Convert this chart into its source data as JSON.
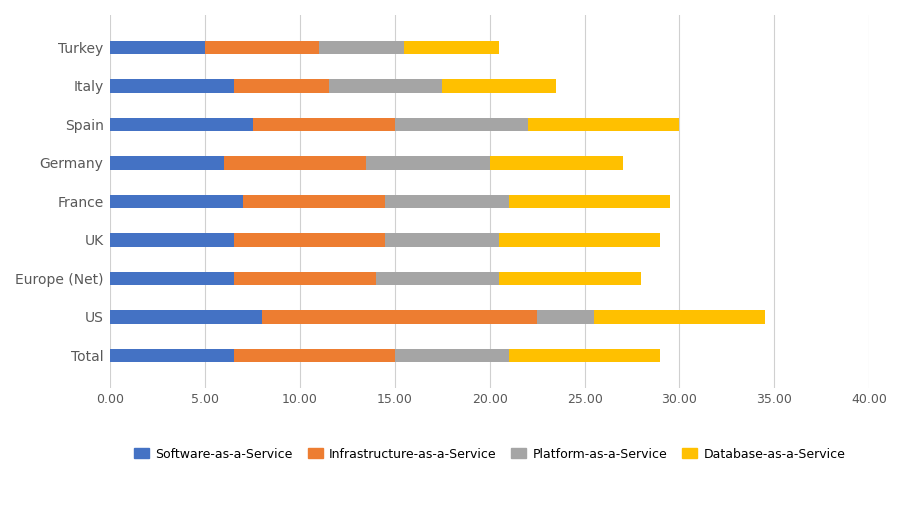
{
  "categories": [
    "Total",
    "US",
    "Europe (Net)",
    "UK",
    "France",
    "Germany",
    "Spain",
    "Italy",
    "Turkey"
  ],
  "series": {
    "Software-as-a-Service": [
      6.5,
      8.0,
      6.5,
      6.5,
      7.0,
      6.0,
      7.5,
      6.5,
      5.0
    ],
    "Infrastructure-as-a-Service": [
      8.5,
      14.5,
      7.5,
      8.0,
      7.5,
      7.5,
      7.5,
      5.0,
      6.0
    ],
    "Platform-as-a-Service": [
      6.0,
      3.0,
      6.5,
      6.0,
      6.5,
      6.5,
      7.0,
      6.0,
      4.5
    ],
    "Database-as-a-Service": [
      8.0,
      9.0,
      7.5,
      8.5,
      8.5,
      7.0,
      8.0,
      6.0,
      5.0
    ]
  },
  "colors": {
    "Software-as-a-Service": "#4472C4",
    "Infrastructure-as-a-Service": "#ED7D31",
    "Platform-as-a-Service": "#A5A5A5",
    "Database-as-a-Service": "#FFC000"
  },
  "xlim": [
    0,
    40
  ],
  "xticks": [
    0.0,
    5.0,
    10.0,
    15.0,
    20.0,
    25.0,
    30.0,
    35.0,
    40.0
  ],
  "background_color": "#ffffff",
  "grid_color": "#d0d0d0",
  "bar_height": 0.35,
  "figsize": [
    9.02,
    5.27
  ],
  "dpi": 100
}
